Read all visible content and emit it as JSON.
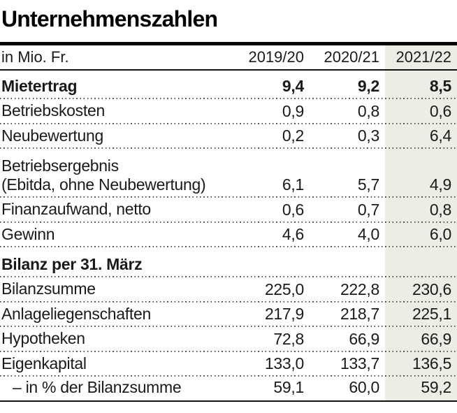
{
  "title": "Unternehmenszahlen",
  "table": {
    "unit_label": "in Mio. Fr.",
    "columns": [
      "2019/20",
      "2020/21",
      "2021/22"
    ],
    "highlighted_column": "2021/22",
    "rows": [
      {
        "label": "Mietertrag",
        "values": [
          "9,4",
          "9,2",
          "8,5"
        ],
        "bold": true
      },
      {
        "label": "Betriebskosten",
        "values": [
          "0,9",
          "0,8",
          "0,6"
        ]
      },
      {
        "label": "Neubewertung",
        "values": [
          "0,2",
          "0,3",
          "6,4"
        ]
      },
      {
        "label": "Betriebsergebnis",
        "label_line2": "(Ebitda, ohne Neubewertung)",
        "values": [
          "6,1",
          "5,7",
          "4,9"
        ]
      },
      {
        "label": "Finanzaufwand, netto",
        "values": [
          "0,6",
          "0,7",
          "0,8"
        ]
      },
      {
        "label": "Gewinn",
        "values": [
          "4,6",
          "4,0",
          "6,0"
        ]
      },
      {
        "label": "Bilanz per 31. März",
        "section": true
      },
      {
        "label": "Bilanzsumme",
        "values": [
          "225,0",
          "222,8",
          "230,6"
        ]
      },
      {
        "label": "Anlageliegenschaften",
        "values": [
          "217,9",
          "218,7",
          "225,1"
        ]
      },
      {
        "label": "Hypotheken",
        "values": [
          "72,8",
          "66,9",
          "66,9"
        ]
      },
      {
        "label": "Eigenkapital",
        "values": [
          "133,0",
          "133,7",
          "136,5"
        ]
      },
      {
        "label": "– in % der Bilanzsumme",
        "values": [
          "59,1",
          "60,0",
          "59,2"
        ],
        "sub_item": true
      }
    ]
  },
  "colors": {
    "highlight": "#eeede5",
    "rule": "#050505",
    "text": "#1a1a1a",
    "dots": "#3a3a3a"
  },
  "chart_data": {
    "type": "table",
    "title": "Unternehmenszahlen",
    "unit": "in Mio. Fr.",
    "columns": [
      "2019/20",
      "2020/21",
      "2021/22"
    ],
    "highlighted_column": "2021/22",
    "rows": [
      {
        "label": "Mietertrag",
        "values": [
          9.4,
          9.2,
          8.5
        ]
      },
      {
        "label": "Betriebskosten",
        "values": [
          0.9,
          0.8,
          0.6
        ]
      },
      {
        "label": "Neubewertung",
        "values": [
          0.2,
          0.3,
          6.4
        ]
      },
      {
        "label": "Betriebsergebnis (Ebitda, ohne Neubewertung)",
        "values": [
          6.1,
          5.7,
          4.9
        ]
      },
      {
        "label": "Finanzaufwand, netto",
        "values": [
          0.6,
          0.7,
          0.8
        ]
      },
      {
        "label": "Gewinn",
        "values": [
          4.6,
          4.0,
          6.0
        ]
      },
      {
        "label": "Bilanz per 31. März",
        "values": null,
        "section": true
      },
      {
        "label": "Bilanzsumme",
        "values": [
          225.0,
          222.8,
          230.6
        ]
      },
      {
        "label": "Anlageliegenschaften",
        "values": [
          217.9,
          218.7,
          225.1
        ]
      },
      {
        "label": "Hypotheken",
        "values": [
          72.8,
          66.9,
          66.9
        ]
      },
      {
        "label": "Eigenkapital",
        "values": [
          133.0,
          133.7,
          136.5
        ]
      },
      {
        "label": "– in % der Bilanzsumme",
        "values": [
          59.1,
          60.0,
          59.2
        ]
      }
    ]
  }
}
